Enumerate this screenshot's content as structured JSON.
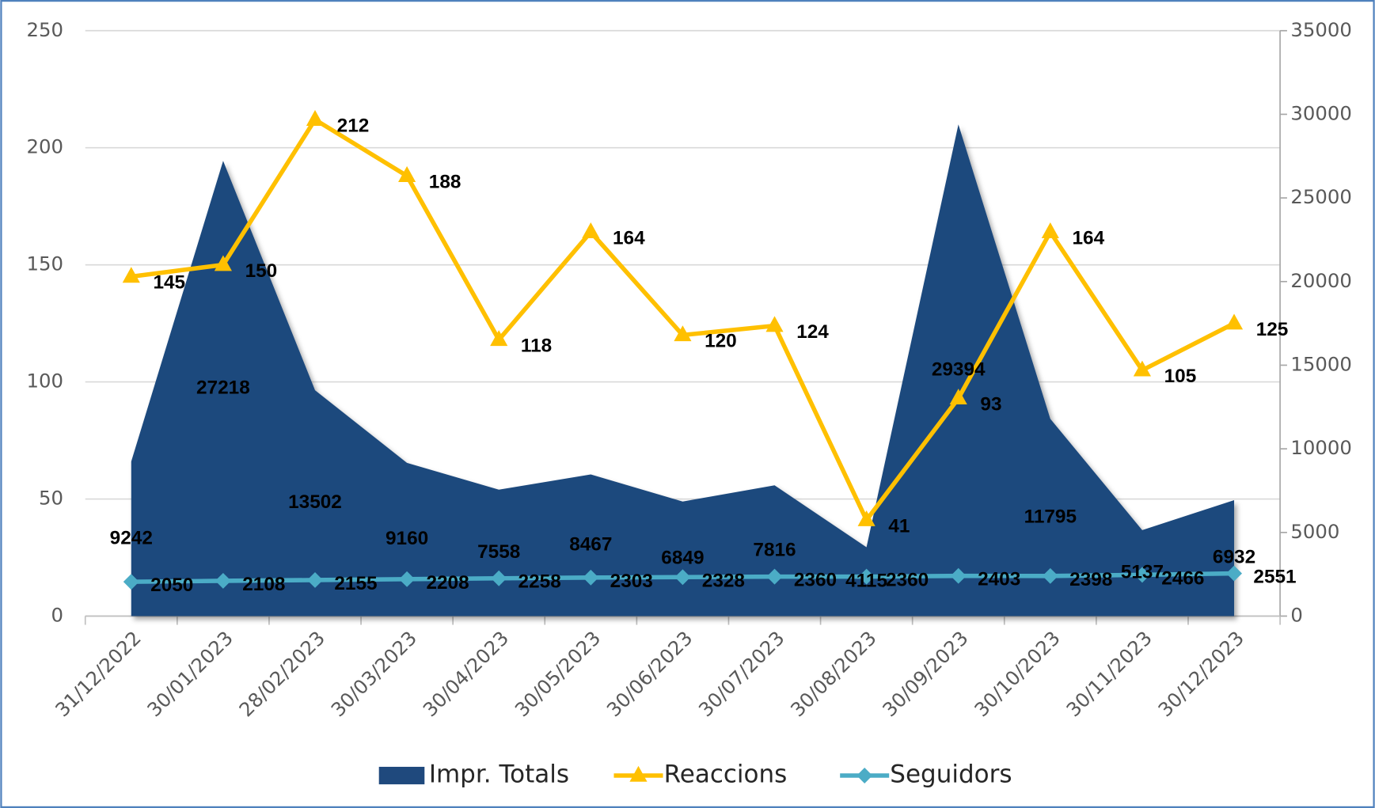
{
  "chart_data": {
    "type": "combo",
    "categories": [
      "31/12/2022",
      "30/01/2023",
      "28/02/2023",
      "30/03/2023",
      "30/04/2023",
      "30/05/2023",
      "30/06/2023",
      "30/07/2023",
      "30/08/2023",
      "30/09/2023",
      "30/10/2023",
      "30/11/2023",
      "30/12/2023"
    ],
    "series": [
      {
        "name": "Impr. Totals",
        "type": "area",
        "axis": "y2",
        "color": "#1f497d",
        "values": [
          9242,
          27218,
          13502,
          9160,
          7558,
          8467,
          6849,
          7816,
          4115,
          29394,
          11795,
          5137,
          6932
        ]
      },
      {
        "name": "Reaccions",
        "type": "line",
        "axis": "y",
        "color": "#ffc000",
        "values": [
          145,
          150,
          212,
          188,
          118,
          164,
          120,
          124,
          41,
          93,
          164,
          105,
          125
        ]
      },
      {
        "name": "Seguidors",
        "type": "line",
        "axis": "y2",
        "color": "#4bacc6",
        "values": [
          2050,
          2108,
          2155,
          2208,
          2258,
          2303,
          2328,
          2360,
          2360,
          2403,
          2398,
          2466,
          2551
        ]
      }
    ],
    "ylim": [
      0,
      250
    ],
    "yticks": [
      0,
      50,
      100,
      150,
      200,
      250
    ],
    "y2lim": [
      0,
      35000
    ],
    "y2ticks": [
      0,
      5000,
      10000,
      15000,
      20000,
      25000,
      30000,
      35000
    ],
    "grid": true,
    "legend": "bottom"
  }
}
